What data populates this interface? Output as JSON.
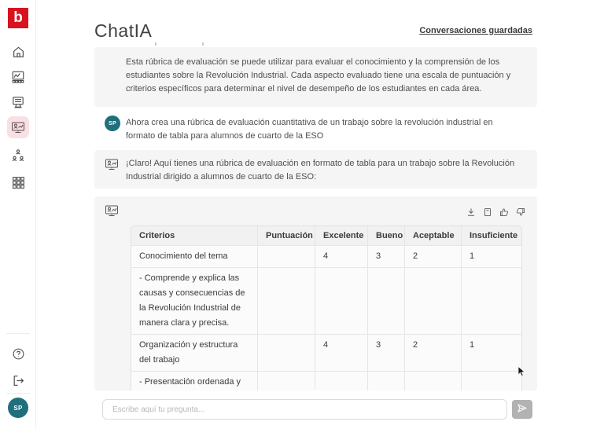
{
  "app": {
    "logo_letter": "b",
    "title": "ChatIA",
    "saved_conversations_label": "Conversaciones guardadas"
  },
  "colors": {
    "brand_red": "#d8131f",
    "active_item_bg": "#f9e0e4",
    "avatar_teal": "#1f6f7d",
    "message_block_gray": "#f5f5f6"
  },
  "sidebar": {
    "icons": [
      "home-icon",
      "resources-icon",
      "courses-icon",
      "chatia-icon",
      "groups-icon",
      "apps-grid-icon"
    ],
    "active_icon": "chatia-icon",
    "footer_icons": [
      "help-icon",
      "logout-icon"
    ],
    "avatar_initials": "SP"
  },
  "chat": {
    "messages": [
      {
        "role": "assistant",
        "text": "Esta rúbrica de evaluación se puede utilizar para evaluar el conocimiento y la comprensión de los estudiantes sobre la Revolución Industrial. Cada aspecto evaluado tiene una escala de puntuación y criterios específicos para determinar el nivel de desempeño de los estudiantes en cada área."
      },
      {
        "role": "user",
        "avatar": "SP",
        "text": "Ahora crea una rúbrica de evaluación cuantitativa de un trabajo sobre la revolución industrial en formato de tabla para alumnos de cuarto de la ESO"
      },
      {
        "role": "assistant",
        "text": "¡Claro! Aquí tienes una rúbrica de evaluación en formato de tabla para un trabajo sobre la Revolución Industrial dirigido a alumnos de cuarto de la ESO:"
      }
    ],
    "table_block": {
      "actions": [
        "download-icon",
        "copy-icon",
        "thumbs-up-icon",
        "thumbs-down-icon"
      ],
      "table": {
        "headers": [
          "Criterios",
          "Puntuación",
          "Excelente",
          "Bueno",
          "Aceptable",
          "Insuficiente"
        ],
        "rows": [
          [
            "Conocimiento del tema",
            "",
            "4",
            "3",
            "2",
            "1"
          ],
          [
            "- Comprende y explica las causas y consecuencias de la Revolución Industrial de manera clara y precisa.",
            "",
            "",
            "",
            "",
            ""
          ],
          [
            "Organización y estructura del trabajo",
            "",
            "4",
            "3",
            "2",
            "1"
          ],
          [
            "- Presentación ordenada y lógica de la información, con",
            "",
            "",
            "",
            "",
            ""
          ]
        ]
      }
    }
  },
  "composer": {
    "placeholder": "Escribe aquí tu pregunta...",
    "send_icon": "paper-plane-icon"
  }
}
